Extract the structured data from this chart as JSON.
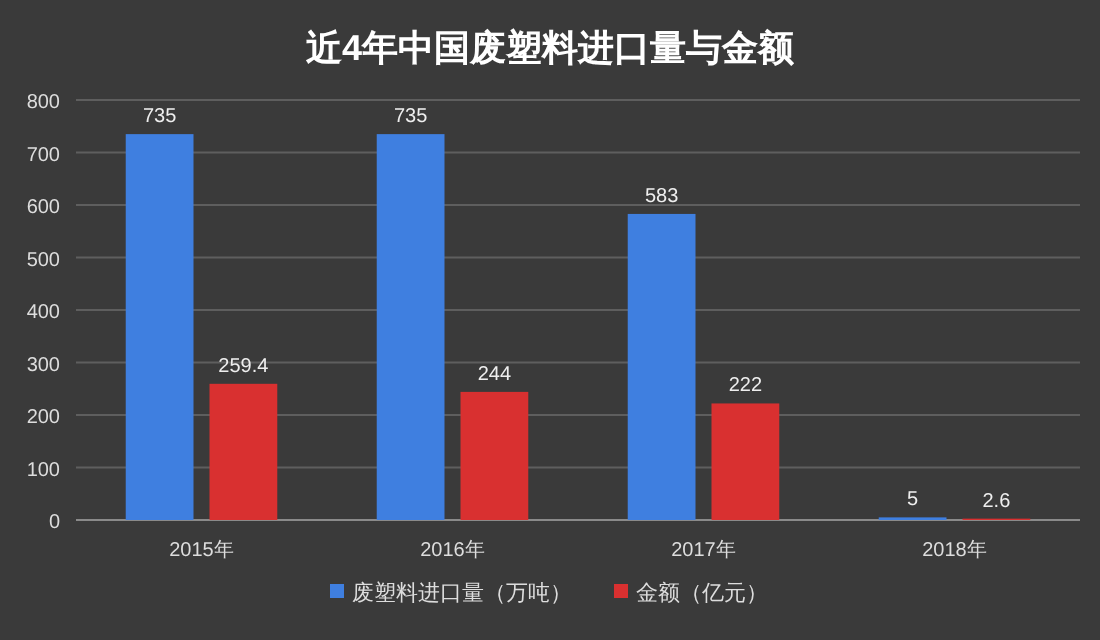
{
  "chart_data": {
    "type": "bar",
    "title": "近4年中国废塑料进口量与金额",
    "categories": [
      "2015年",
      "2016年",
      "2017年",
      "2018年"
    ],
    "series": [
      {
        "name": "废塑料进口量（万吨）",
        "color": "#3f7fe0",
        "values": [
          735,
          735,
          583,
          5
        ]
      },
      {
        "name": "金额（亿元）",
        "color": "#d93030",
        "values": [
          259.4,
          244,
          222,
          2.6
        ]
      }
    ],
    "ylim": [
      0,
      800
    ],
    "yticks": [
      0,
      100,
      200,
      300,
      400,
      500,
      600,
      700,
      800
    ],
    "grid": "y",
    "data_labels": true,
    "legend": "bottom"
  }
}
